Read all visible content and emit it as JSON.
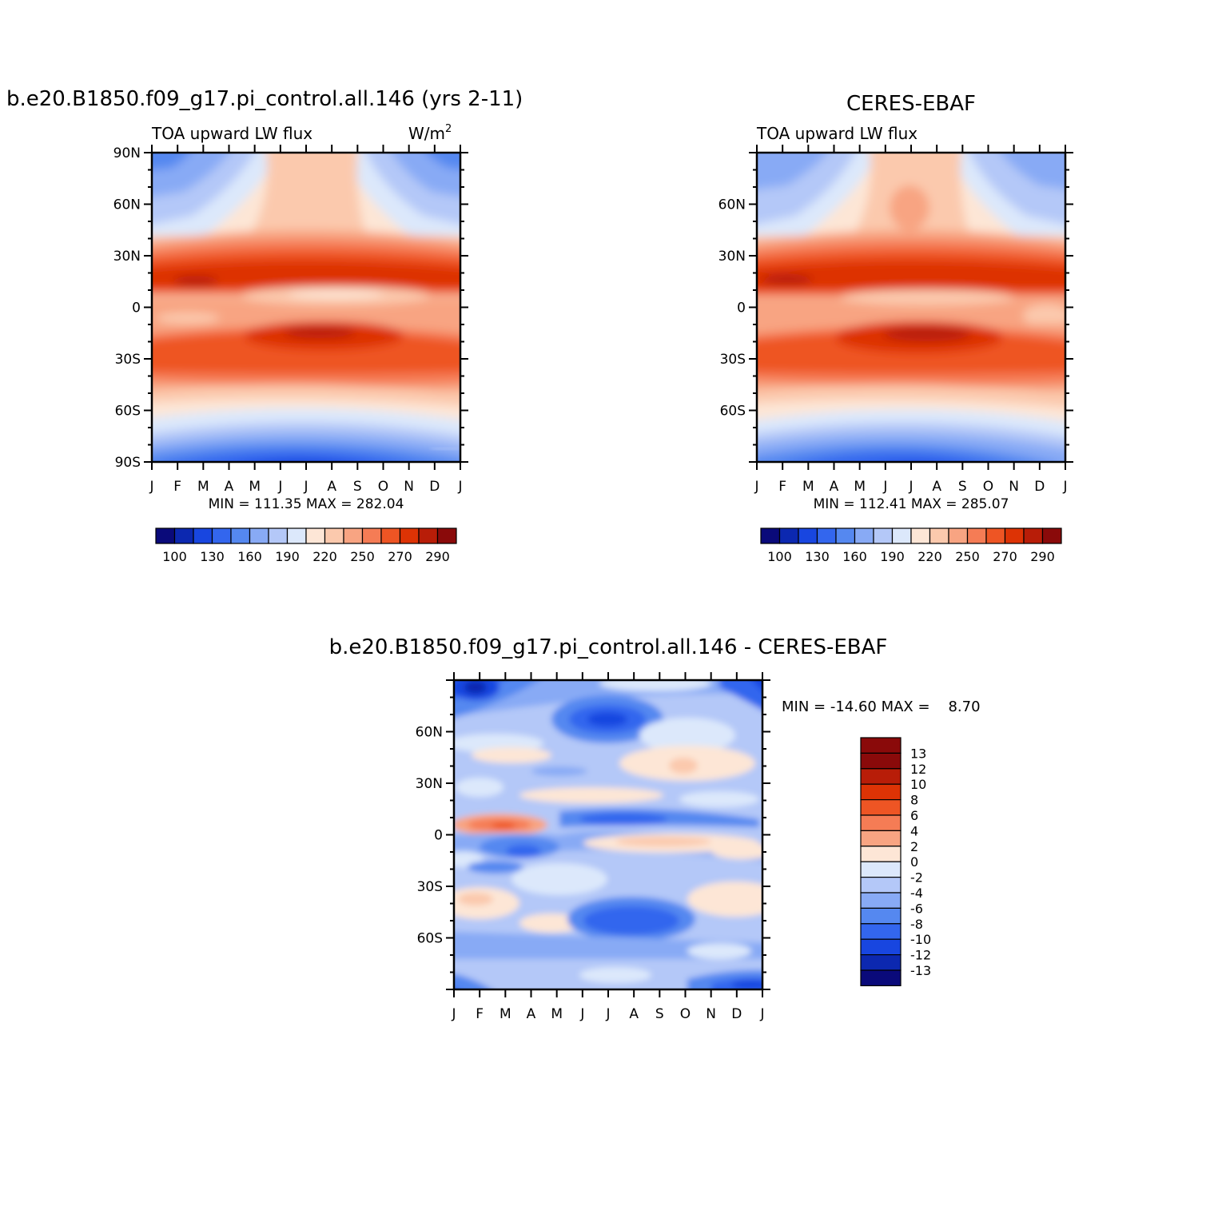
{
  "chart_data": [
    {
      "type": "heatmap",
      "title": "b.e20.B1850.f09_g17.pi_control.all.146 (yrs 2-11)",
      "left_label": "TOA upward LW flux",
      "right_label": "W/m",
      "units_superscript": "2",
      "stats": "MIN = 111.35 MAX = 282.04",
      "x_ticks": [
        "J",
        "F",
        "M",
        "A",
        "M",
        "J",
        "J",
        "A",
        "S",
        "O",
        "N",
        "D",
        "J"
      ],
      "y_ticks": [
        "90N",
        "60N",
        "30N",
        "0",
        "30S",
        "60S",
        "90S"
      ],
      "y_tick_values": [
        90,
        60,
        30,
        0,
        -30,
        -60,
        -90
      ],
      "ylim": [
        -90,
        90
      ],
      "colorbar_labels": [
        "100",
        "130",
        "160",
        "190",
        "220",
        "250",
        "270",
        "290"
      ],
      "grid": false
    },
    {
      "type": "heatmap",
      "title": "CERES-EBAF",
      "left_label": "TOA upward LW flux",
      "stats": "MIN = 112.41 MAX = 285.07",
      "x_ticks": [
        "J",
        "F",
        "M",
        "A",
        "M",
        "J",
        "J",
        "A",
        "S",
        "O",
        "N",
        "D",
        "J"
      ],
      "y_ticks": [
        "60N",
        "30N",
        "0",
        "30S",
        "60S"
      ],
      "y_tick_values": [
        60,
        30,
        0,
        -30,
        -60
      ],
      "ylim": [
        -90,
        90
      ],
      "colorbar_labels": [
        "100",
        "130",
        "160",
        "190",
        "220",
        "250",
        "270",
        "290"
      ],
      "grid": false
    },
    {
      "type": "heatmap",
      "title": "b.e20.B1850.f09_g17.pi_control.all.146 - CERES-EBAF",
      "stats": "MIN = -14.60 MAX =    8.70",
      "x_ticks": [
        "J",
        "F",
        "M",
        "A",
        "M",
        "J",
        "J",
        "A",
        "S",
        "O",
        "N",
        "D",
        "J"
      ],
      "y_ticks": [
        "60N",
        "30N",
        "0",
        "30S",
        "60S"
      ],
      "y_tick_values": [
        60,
        30,
        0,
        -30,
        -60
      ],
      "ylim": [
        -90,
        90
      ],
      "colorbar_labels": [
        "13",
        "12",
        "10",
        "8",
        "6",
        "4",
        "2",
        "0",
        "-2",
        "-4",
        "-6",
        "-8",
        "-10",
        "-12",
        "-13"
      ],
      "grid": false
    }
  ],
  "palette_abs": [
    "#0a0a7a",
    "#0c28b0",
    "#1846e0",
    "#3366ee",
    "#5588f0",
    "#88aaf5",
    "#b4c8f8",
    "#dce8fb",
    "#fde6d6",
    "#fbc9ad",
    "#f8a482",
    "#f57c55",
    "#ee5524",
    "#dd3305",
    "#b81d08",
    "#8a0a0a"
  ],
  "palette_diff": [
    "#8a0a0a",
    "#b81d08",
    "#dd3305",
    "#ee5524",
    "#f57c55",
    "#f8a482",
    "#fde6d6",
    "#dce8fb",
    "#b4c8f8",
    "#88aaf5",
    "#5588f0",
    "#3366ee",
    "#1846e0",
    "#0c28b0",
    "#0a0a7a"
  ]
}
